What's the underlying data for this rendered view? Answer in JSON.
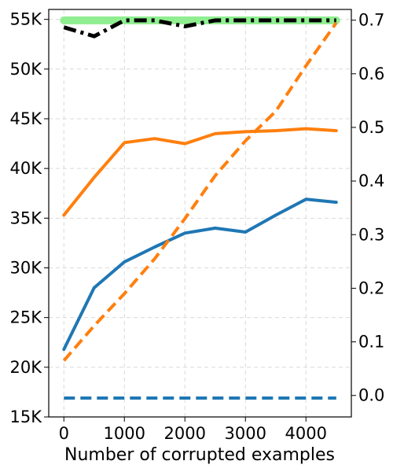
{
  "chart_data": {
    "type": "line",
    "xlabel": "Number of corrupted examples",
    "x_ticks": [
      "0",
      "1000",
      "2000",
      "3000",
      "4000"
    ],
    "xlim": [
      -250,
      4750
    ],
    "y_left": {
      "ylim": [
        15000,
        56000
      ],
      "ticks": [
        15000,
        20000,
        25000,
        30000,
        35000,
        40000,
        45000,
        50000,
        55000
      ],
      "tick_labels": [
        "15K",
        "20K",
        "25K",
        "30K",
        "35K",
        "40K",
        "45K",
        "50K",
        "55K"
      ]
    },
    "y_right": {
      "ylim": [
        -0.04,
        0.72
      ],
      "ticks": [
        0.0,
        0.1,
        0.2,
        0.3,
        0.4,
        0.5,
        0.6,
        0.7
      ],
      "tick_labels": [
        "0.0",
        "0.1",
        "0.2",
        "0.3",
        "0.4",
        "0.5",
        "0.6",
        "0.7"
      ]
    },
    "grid": true,
    "series": [
      {
        "axis": "left",
        "color": "#90ee90",
        "style": "solid",
        "width": 10,
        "x": [
          0,
          4500
        ],
        "y": [
          54900,
          54900
        ]
      },
      {
        "axis": "left",
        "color": "#000000",
        "style": "dashdot",
        "width": 5,
        "x": [
          0,
          500,
          1000,
          1500,
          2000,
          2500,
          3000,
          3500,
          4000,
          4500
        ],
        "y": [
          54200,
          53300,
          54900,
          54900,
          54300,
          54900,
          54900,
          54900,
          54900,
          54900
        ]
      },
      {
        "axis": "left",
        "color": "#ff7f0e",
        "style": "solid",
        "width": 4,
        "x": [
          0,
          500,
          1000,
          1500,
          2000,
          2500,
          3000,
          3500,
          4000,
          4500
        ],
        "y": [
          35300,
          39100,
          42600,
          43000,
          42500,
          43500,
          43700,
          43800,
          44000,
          43800
        ]
      },
      {
        "axis": "left",
        "color": "#1f77b4",
        "style": "solid",
        "width": 4,
        "x": [
          0,
          500,
          1000,
          1500,
          2000,
          2500,
          3000,
          3500,
          4000,
          4500
        ],
        "y": [
          21800,
          28000,
          30600,
          32100,
          33500,
          34000,
          33600,
          35300,
          36900,
          36600
        ]
      },
      {
        "axis": "left",
        "color": "#1f77b4",
        "style": "dashed",
        "width": 4,
        "x": [
          0,
          4500
        ],
        "y": [
          16900,
          16900
        ]
      },
      {
        "axis": "right",
        "color": "#ff7f0e",
        "style": "dashed",
        "width": 4,
        "x": [
          0,
          500,
          1000,
          1500,
          2000,
          2500,
          3000,
          3500,
          4000,
          4500
        ],
        "y": [
          0.065,
          0.13,
          0.19,
          0.255,
          0.33,
          0.41,
          0.475,
          0.53,
          0.615,
          0.695
        ]
      }
    ]
  }
}
